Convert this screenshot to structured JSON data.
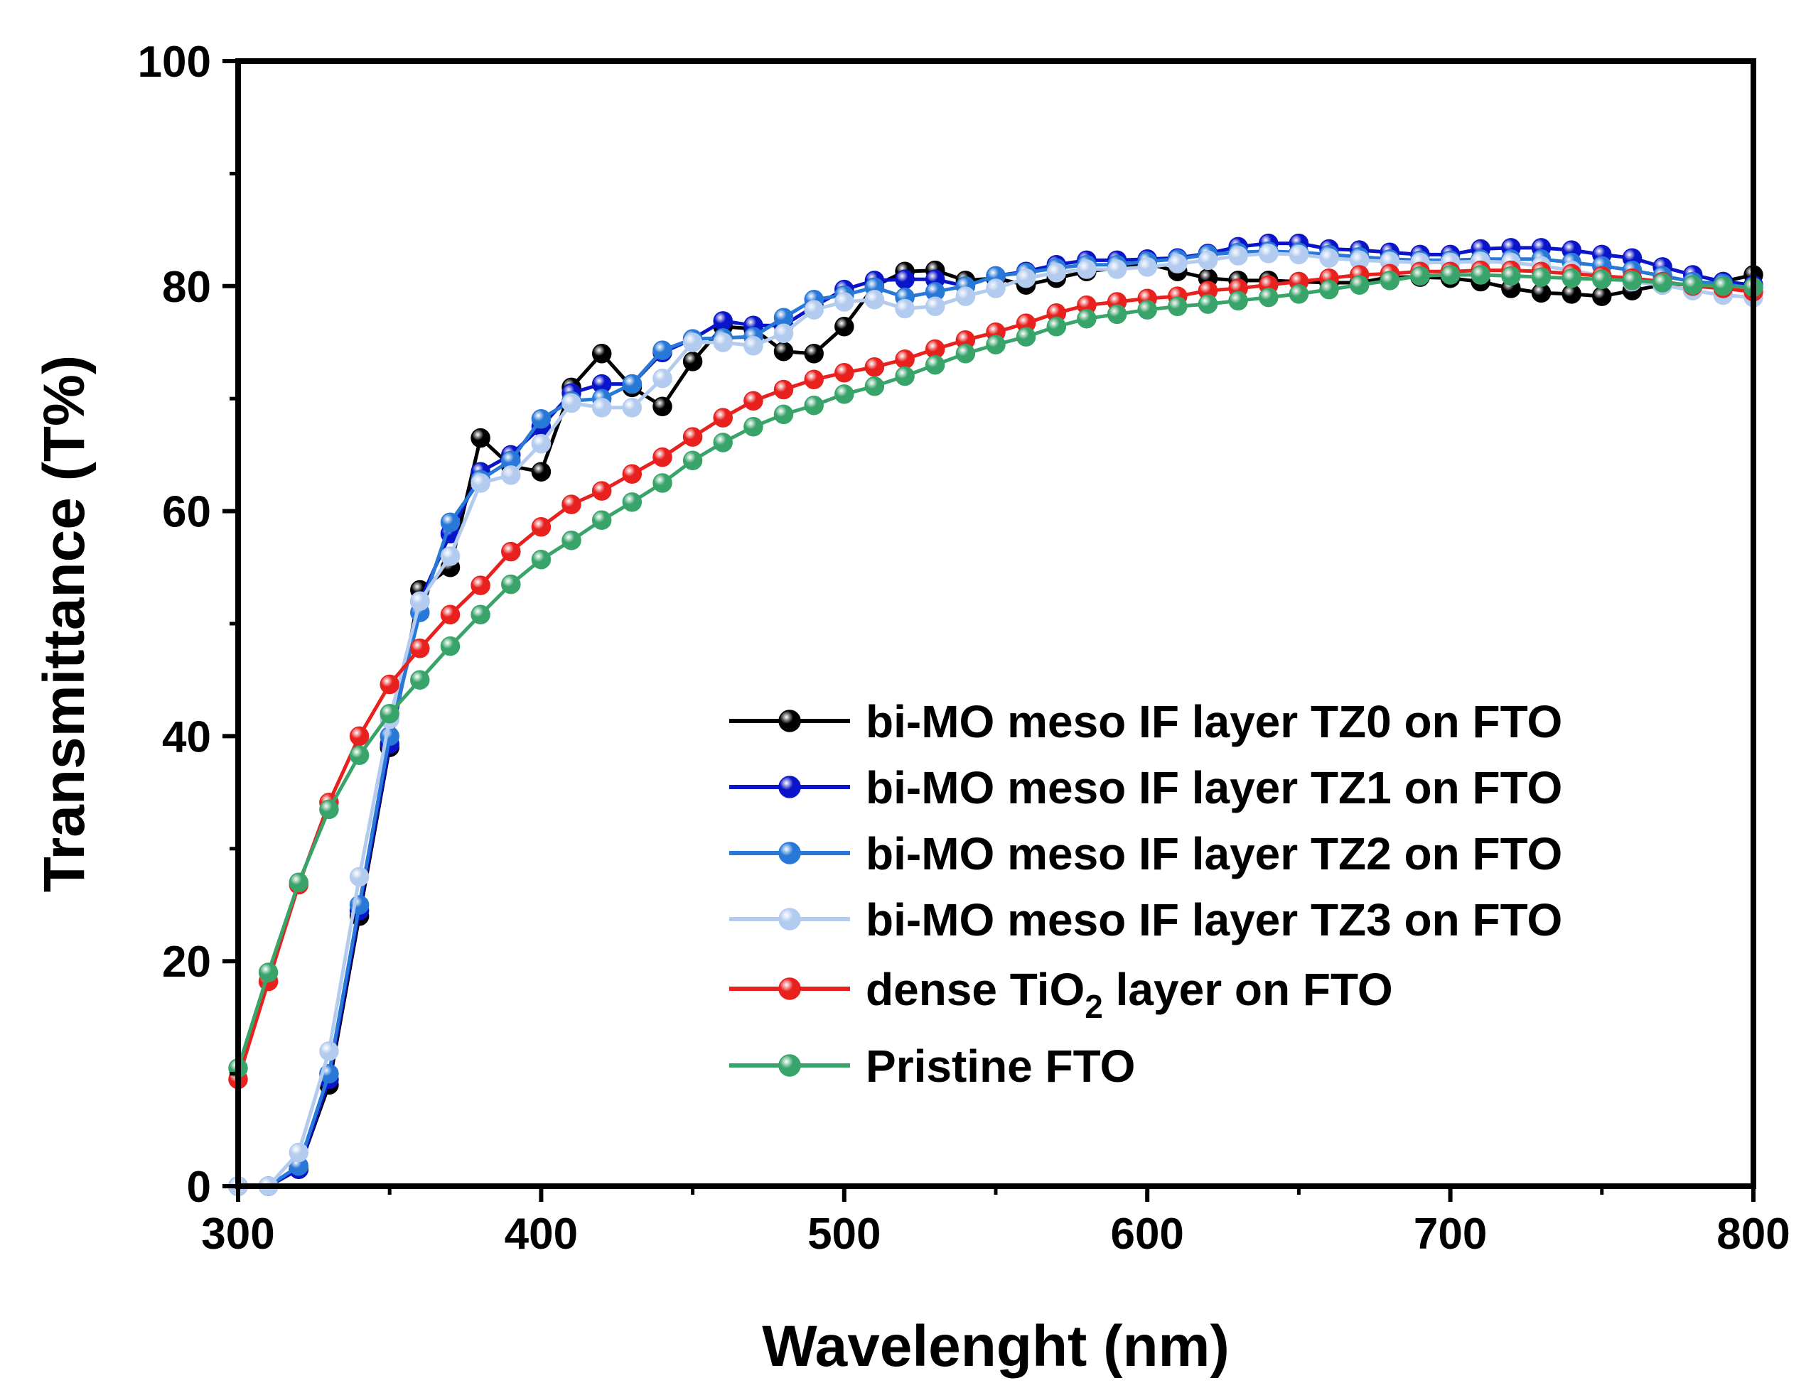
{
  "chart_data": {
    "type": "line",
    "xlabel": "Wavelenght (nm)",
    "ylabel": "Transmittance (T%)",
    "xlim": [
      300,
      800
    ],
    "ylim": [
      0,
      100
    ],
    "xticks": [
      "300",
      "400",
      "500",
      "600",
      "700",
      "800"
    ],
    "xtick_values": [
      300,
      400,
      500,
      600,
      700,
      800
    ],
    "yticks": [
      "0",
      "20",
      "40",
      "60",
      "80",
      "100"
    ],
    "ytick_values": [
      0,
      20,
      40,
      60,
      80,
      100
    ],
    "legend_position": "center-right",
    "x": [
      300,
      310,
      320,
      330,
      340,
      350,
      360,
      370,
      380,
      390,
      400,
      410,
      420,
      430,
      440,
      450,
      460,
      470,
      480,
      490,
      500,
      510,
      520,
      530,
      540,
      550,
      560,
      570,
      580,
      590,
      600,
      610,
      620,
      630,
      640,
      650,
      660,
      670,
      680,
      690,
      700,
      710,
      720,
      730,
      740,
      750,
      760,
      770,
      780,
      790,
      800
    ],
    "series": [
      {
        "name": "bi-MO meso IF layer TZ0 on FTO",
        "color": "#000000",
        "values": [
          0,
          0,
          1.5,
          9,
          24,
          39,
          53,
          55,
          66.5,
          64,
          63.5,
          71,
          74,
          71,
          69.3,
          73.3,
          76.4,
          76.2,
          74.2,
          74,
          76.4,
          80,
          81.3,
          81.4,
          80.5,
          80.7,
          80.1,
          80.7,
          81.3,
          81.6,
          82,
          81.3,
          80.7,
          80.5,
          80.5,
          80.4,
          80.3,
          80.3,
          80.8,
          80.8,
          80.7,
          80.4,
          79.8,
          79.4,
          79.3,
          79.1,
          79.6,
          80.1,
          80.2,
          80.4,
          81
        ]
      },
      {
        "name": "bi-MO meso IF layer TZ1 on FTO",
        "color": "#0a14c8",
        "values": [
          0,
          0,
          1.5,
          9.5,
          24.5,
          39.3,
          52,
          58,
          63.5,
          65,
          67.5,
          70.5,
          71.3,
          71.3,
          74.1,
          75.3,
          76.9,
          76.5,
          76.5,
          78.2,
          79.7,
          80.5,
          80.6,
          80.6,
          80,
          80.9,
          81.3,
          81.9,
          82.3,
          82.3,
          82.4,
          82.5,
          82.9,
          83.5,
          83.8,
          83.8,
          83.3,
          83.2,
          83,
          82.8,
          82.8,
          83.3,
          83.4,
          83.4,
          83.2,
          82.8,
          82.5,
          81.7,
          81,
          80.4,
          80.1
        ]
      },
      {
        "name": "bi-MO meso IF layer TZ2 on FTO",
        "color": "#2878d7",
        "values": [
          0,
          0,
          1.8,
          10,
          25,
          40,
          51,
          59,
          62.8,
          64.5,
          68.2,
          69.8,
          70,
          71.3,
          74.3,
          75.3,
          75.4,
          75.5,
          77.2,
          78.8,
          79.2,
          79.9,
          79,
          79.5,
          80,
          80.9,
          81.2,
          81.6,
          81.9,
          81.9,
          82.2,
          82.4,
          82.8,
          83,
          83.1,
          83,
          82.8,
          82.6,
          82.4,
          82.3,
          82.3,
          82.4,
          82.4,
          82.4,
          82.1,
          81.8,
          81.4,
          80.9,
          80.4,
          80.2,
          79.8
        ]
      },
      {
        "name": "bi-MO meso IF layer TZ3 on FTO",
        "color": "#b2cbef",
        "values": [
          0,
          0,
          3,
          12,
          27.5,
          41.5,
          52,
          56,
          62.5,
          63.2,
          66,
          69.6,
          69.2,
          69.2,
          71.8,
          75,
          75,
          74.7,
          75.8,
          77.9,
          78.6,
          78.8,
          78,
          78.2,
          79.1,
          79.8,
          80.7,
          81.2,
          81.5,
          81.5,
          81.7,
          82,
          82.3,
          82.7,
          82.9,
          82.8,
          82.5,
          82.3,
          82.2,
          82.1,
          82.1,
          82.2,
          82.1,
          81.8,
          81.4,
          80.9,
          80.4,
          80.1,
          79.6,
          79.2,
          79
        ]
      },
      {
        "name": "dense TiO2 layer on FTO",
        "name_main": "dense TiO",
        "name_sub": "2",
        "name_tail": " layer on FTO",
        "color": "#e8201e",
        "values": [
          9.5,
          18.2,
          26.8,
          34.1,
          40,
          44.6,
          47.8,
          50.8,
          53.4,
          56.4,
          58.6,
          60.6,
          61.8,
          63.3,
          64.8,
          66.6,
          68.3,
          69.8,
          70.8,
          71.7,
          72.3,
          72.8,
          73.5,
          74.4,
          75.2,
          75.9,
          76.7,
          77.6,
          78.3,
          78.6,
          78.9,
          79.1,
          79.6,
          79.8,
          80.1,
          80.4,
          80.7,
          81,
          81.1,
          81.3,
          81.3,
          81.4,
          81.4,
          81.3,
          81.1,
          80.9,
          80.7,
          80.4,
          80,
          79.8,
          79.5
        ]
      },
      {
        "name": "Pristine FTO",
        "color": "#39a46a",
        "values": [
          10.5,
          19,
          27,
          33.5,
          38.3,
          42,
          45,
          48,
          50.8,
          53.5,
          55.7,
          57.4,
          59.2,
          60.8,
          62.5,
          64.5,
          66.1,
          67.5,
          68.6,
          69.4,
          70.4,
          71.1,
          72,
          73,
          74,
          74.8,
          75.5,
          76.4,
          77.1,
          77.5,
          77.9,
          78.2,
          78.4,
          78.7,
          79,
          79.3,
          79.7,
          80.1,
          80.5,
          80.9,
          81,
          81,
          80.9,
          80.8,
          80.7,
          80.6,
          80.5,
          80.3,
          80.1,
          80,
          79.9
        ]
      }
    ]
  }
}
